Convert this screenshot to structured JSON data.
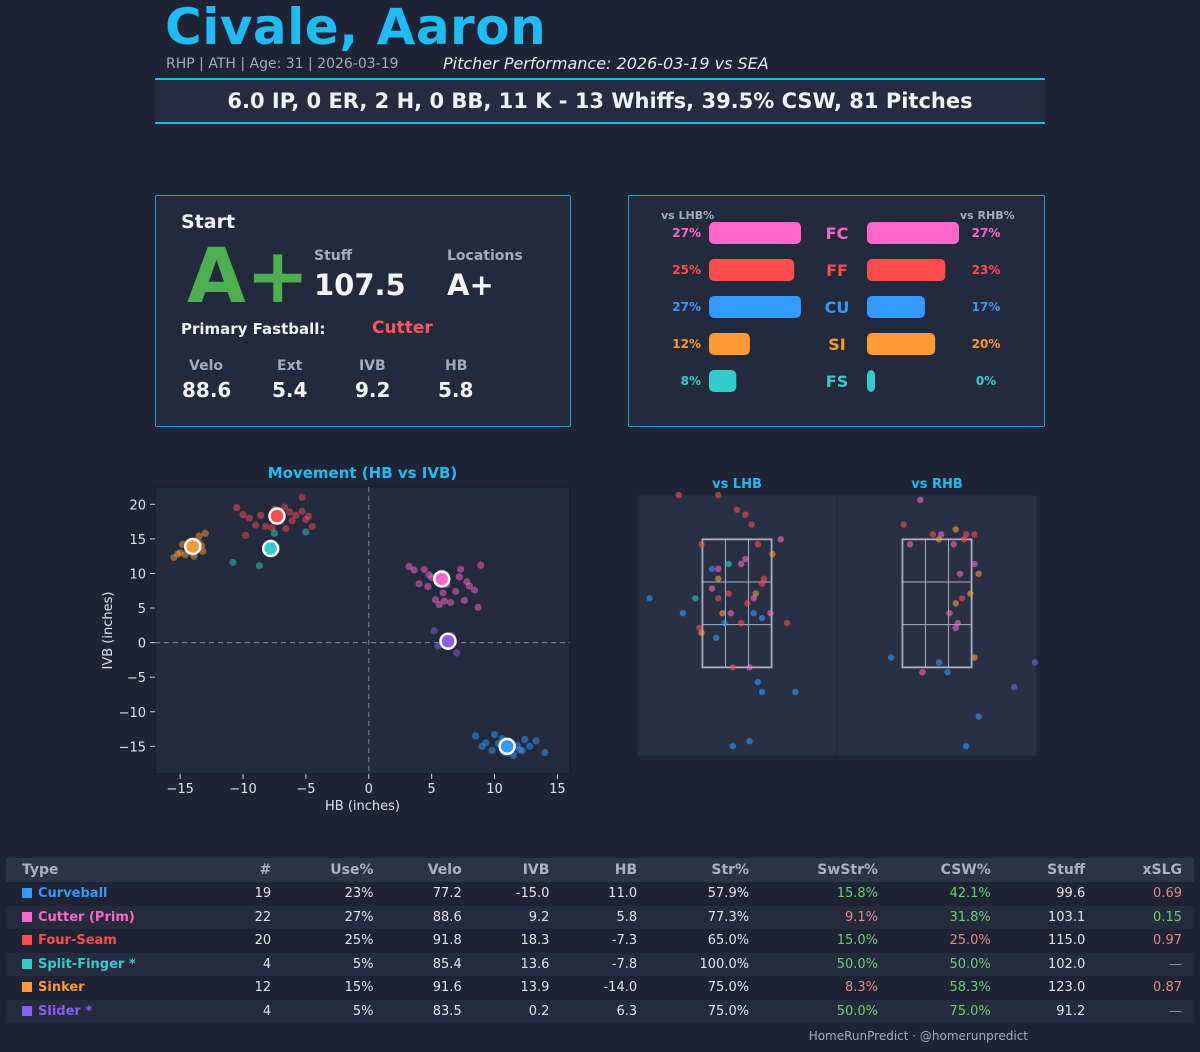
{
  "header": {
    "name": "Civale, Aaron",
    "meta": "RHP | ATH | Age: 31 | 2026-03-19",
    "performance": "Pitcher Performance: 2026-03-19 vs SEA",
    "statline": "6.0 IP, 0 ER, 2 H, 0 BB, 11 K - 13 Whiffs, 39.5% CSW, 81 Pitches"
  },
  "grade_card": {
    "title": "Start",
    "grade": "A+",
    "stuff_label": "Stuff",
    "stuff_value": "107.5",
    "locations_label": "Locations",
    "locations_value": "A+",
    "primary_label": "Primary Fastball:",
    "primary_value": "Cutter",
    "stats": [
      {
        "label": "Velo",
        "value": "88.6"
      },
      {
        "label": "Ext",
        "value": "5.4"
      },
      {
        "label": "IVB",
        "value": "9.2"
      },
      {
        "label": "HB",
        "value": "5.8"
      }
    ]
  },
  "usage_card": {
    "lhb_title": "vs LHB%",
    "rhb_title": "vs RHB%",
    "rows": [
      {
        "code": "FC",
        "color": "#ff66cc",
        "lhb": 27,
        "rhb": 27,
        "lhb_label": "27%",
        "rhb_label": "27%"
      },
      {
        "code": "FF",
        "color": "#ff4d4d",
        "lhb": 25,
        "rhb": 23,
        "lhb_label": "25%",
        "rhb_label": "23%"
      },
      {
        "code": "CU",
        "color": "#3399ff",
        "lhb": 27,
        "rhb": 17,
        "lhb_label": "27%",
        "rhb_label": "17%"
      },
      {
        "code": "SI",
        "color": "#ff9933",
        "lhb": 12,
        "rhb": 20,
        "lhb_label": "12%",
        "rhb_label": "20%"
      },
      {
        "code": "FS",
        "color": "#33cccc",
        "lhb": 8,
        "rhb": 0,
        "lhb_label": "8%",
        "rhb_label": "0%"
      }
    ]
  },
  "chart_data": [
    {
      "type": "scatter",
      "title": "Movement (HB vs IVB)",
      "xlabel": "HB (inches)",
      "ylabel": "IVB (inches)",
      "xlim": [
        -17,
        16
      ],
      "ylim": [
        -19,
        22.5
      ],
      "xticks": [
        -15,
        -10,
        -5,
        0,
        5,
        10,
        15
      ],
      "yticks": [
        20,
        15,
        10,
        5,
        0,
        -5,
        -10,
        -15
      ],
      "xtick_labels": [
        "−15",
        "−10",
        "−5",
        "0",
        "5",
        "10",
        "15"
      ],
      "ytick_labels": [
        "20",
        "15",
        "10",
        "5",
        "0",
        "−5",
        "−10",
        "−15"
      ],
      "series": [
        {
          "name": "Curveball",
          "color": "#3399ff",
          "avg": [
            11.0,
            -15.0
          ],
          "points": [
            [
              8.5,
              -13.5
            ],
            [
              9.3,
              -14.5
            ],
            [
              10.0,
              -13.3
            ],
            [
              10.3,
              -14.6
            ],
            [
              10.7,
              -15.8
            ],
            [
              11.2,
              -15.3
            ],
            [
              11.8,
              -14.9
            ],
            [
              12.2,
              -15.6
            ],
            [
              12.8,
              -15.0
            ],
            [
              13.3,
              -14.2
            ],
            [
              14.0,
              -15.9
            ],
            [
              9.8,
              -15.6
            ],
            [
              10.6,
              -13.9
            ],
            [
              11.5,
              -16.3
            ],
            [
              12.4,
              -14.0
            ],
            [
              9.0,
              -15.0
            ],
            [
              11.0,
              -16.0
            ],
            [
              12.0,
              -15.5
            ],
            [
              10.9,
              -14.8
            ]
          ]
        },
        {
          "name": "Cutter (Prim)",
          "color": "#ff66cc",
          "avg": [
            5.8,
            9.2
          ],
          "points": [
            [
              3.2,
              11.0
            ],
            [
              3.6,
              10.5
            ],
            [
              4.0,
              8.5
            ],
            [
              4.4,
              10.6
            ],
            [
              4.7,
              8.1
            ],
            [
              5.0,
              9.4
            ],
            [
              5.3,
              6.2
            ],
            [
              5.6,
              5.5
            ],
            [
              5.9,
              7.2
            ],
            [
              6.2,
              8.4
            ],
            [
              6.5,
              5.8
            ],
            [
              6.9,
              7.4
            ],
            [
              7.2,
              9.5
            ],
            [
              7.6,
              6.1
            ],
            [
              8.0,
              8.2
            ],
            [
              8.4,
              7.6
            ],
            [
              8.7,
              5.1
            ],
            [
              8.9,
              11.2
            ],
            [
              7.3,
              10.6
            ],
            [
              4.8,
              9.8
            ],
            [
              6.0,
              6.0
            ],
            [
              7.8,
              8.8
            ]
          ]
        },
        {
          "name": "Four-Seam",
          "color": "#ff4d4d",
          "avg": [
            -7.3,
            18.3
          ],
          "points": [
            [
              -10.5,
              19.5
            ],
            [
              -10.0,
              18.5
            ],
            [
              -9.8,
              15.5
            ],
            [
              -9.0,
              17.0
            ],
            [
              -8.6,
              18.4
            ],
            [
              -8.2,
              16.8
            ],
            [
              -7.5,
              19.3
            ],
            [
              -7.0,
              17.6
            ],
            [
              -6.7,
              19.6
            ],
            [
              -6.3,
              18.9
            ],
            [
              -6.1,
              17.6
            ],
            [
              -5.8,
              18.4
            ],
            [
              -5.3,
              19.0
            ],
            [
              -5.0,
              17.8
            ],
            [
              -4.8,
              18.3
            ],
            [
              -5.3,
              21.0
            ],
            [
              -6.6,
              16.5
            ],
            [
              -7.7,
              16.6
            ],
            [
              -4.5,
              16.8
            ],
            [
              -9.5,
              18.0
            ]
          ]
        },
        {
          "name": "Split-Finger",
          "color": "#33cccc",
          "avg": [
            -7.8,
            13.6
          ],
          "points": [
            [
              -10.8,
              11.6
            ],
            [
              -8.7,
              11.1
            ],
            [
              -7.5,
              15.8
            ],
            [
              -5.0,
              16.0
            ]
          ]
        },
        {
          "name": "Sinker",
          "color": "#ff9933",
          "avg": [
            -14.0,
            13.9
          ],
          "points": [
            [
              -15.5,
              12.3
            ],
            [
              -15.0,
              13.0
            ],
            [
              -14.6,
              12.7
            ],
            [
              -14.3,
              13.5
            ],
            [
              -13.9,
              12.5
            ],
            [
              -13.5,
              14.4
            ],
            [
              -13.2,
              13.2
            ],
            [
              -13.0,
              15.8
            ],
            [
              -14.8,
              14.2
            ],
            [
              -13.5,
              15.4
            ],
            [
              -15.2,
              12.8
            ],
            [
              -13.3,
              14.0
            ]
          ]
        },
        {
          "name": "Slider",
          "color": "#8b5cf6",
          "avg": [
            6.3,
            0.2
          ],
          "points": [
            [
              5.2,
              1.7
            ],
            [
              5.5,
              -0.5
            ],
            [
              6.6,
              1.0
            ],
            [
              7.0,
              -1.5
            ]
          ]
        }
      ]
    },
    {
      "type": "scatter",
      "title": "vs LHB",
      "xlim": [
        -2.4,
        2.4
      ],
      "ylim": [
        -0.3,
        5.0
      ],
      "zone_x": [
        -0.83,
        0.83
      ],
      "zone_y": [
        1.5,
        4.1
      ],
      "series": [
        {
          "name": "Curveball",
          "color": "#3399ff",
          "points": [
            [
              -2.1,
              2.9
            ],
            [
              -1.3,
              2.6
            ],
            [
              -0.3,
              2.4
            ],
            [
              0.4,
              2.6
            ],
            [
              -0.6,
              3.5
            ],
            [
              -0.5,
              2.1
            ],
            [
              0.5,
              1.2
            ],
            [
              0.6,
              1.0
            ],
            [
              -0.1,
              -0.1
            ],
            [
              0.3,
              0.0
            ],
            [
              1.4,
              1.0
            ],
            [
              0.6,
              2.5
            ]
          ]
        },
        {
          "name": "Cutter (Prim)",
          "color": "#ff66cc",
          "points": [
            [
              -0.45,
              3.5
            ],
            [
              0.2,
              3.7
            ],
            [
              -0.6,
              3.1
            ],
            [
              0.8,
              2.6
            ],
            [
              0.4,
              2.9
            ],
            [
              0.3,
              1.5
            ],
            [
              -0.15,
              2.6
            ],
            [
              0.1,
              3.6
            ],
            [
              1.05,
              4.1
            ]
          ]
        },
        {
          "name": "Four-Seam",
          "color": "#ff4d4d",
          "points": [
            [
              -1.4,
              5.0
            ],
            [
              -0.45,
              5.0
            ],
            [
              0.0,
              4.7
            ],
            [
              0.2,
              4.6
            ],
            [
              0.35,
              4.4
            ],
            [
              -0.85,
              4.0
            ],
            [
              0.5,
              4.0
            ],
            [
              0.65,
              3.3
            ],
            [
              -0.9,
              2.3
            ],
            [
              -0.45,
              2.9
            ],
            [
              0.6,
              3.2
            ],
            [
              -0.2,
              3.0
            ],
            [
              0.1,
              2.4
            ],
            [
              -0.1,
              1.5
            ],
            [
              1.2,
              2.4
            ],
            [
              0.25,
              2.8
            ]
          ]
        },
        {
          "name": "Split-Finger",
          "color": "#33cccc",
          "points": [
            [
              -1.0,
              2.9
            ],
            [
              -0.2,
              3.6
            ]
          ]
        },
        {
          "name": "Sinker",
          "color": "#ff9933",
          "points": [
            [
              -0.45,
              3.3
            ],
            [
              -0.35,
              2.6
            ],
            [
              0.45,
              3.0
            ],
            [
              0.85,
              3.8
            ],
            [
              -0.85,
              2.2
            ]
          ]
        }
      ]
    },
    {
      "type": "scatter",
      "title": "vs RHB",
      "xlim": [
        -2.4,
        2.4
      ],
      "ylim": [
        -0.3,
        5.0
      ],
      "zone_x": [
        -0.83,
        0.83
      ],
      "zone_y": [
        1.5,
        4.1
      ],
      "series": [
        {
          "name": "Curveball",
          "color": "#3399ff",
          "points": [
            [
              -1.1,
              1.7
            ],
            [
              0.05,
              1.6
            ],
            [
              1.0,
              0.5
            ],
            [
              0.7,
              -0.1
            ],
            [
              0.25,
              1.4
            ]
          ]
        },
        {
          "name": "Cutter (Prim)",
          "color": "#ff66cc",
          "points": [
            [
              -0.4,
              4.9
            ],
            [
              0.4,
              4.0
            ],
            [
              0.55,
              3.4
            ],
            [
              0.5,
              2.4
            ],
            [
              0.45,
              2.3
            ],
            [
              -0.65,
              4.0
            ],
            [
              0.1,
              4.2
            ],
            [
              -0.35,
              1.4
            ],
            [
              0.9,
              3.6
            ],
            [
              0.3,
              2.6
            ]
          ]
        },
        {
          "name": "Four-Seam",
          "color": "#ff4d4d",
          "points": [
            [
              -0.8,
              4.4
            ],
            [
              -0.1,
              4.2
            ],
            [
              0.7,
              4.2
            ],
            [
              0.65,
              4.1
            ],
            [
              0.9,
              4.2
            ],
            [
              0.6,
              2.9
            ]
          ]
        },
        {
          "name": "Sinker",
          "color": "#ff9933",
          "points": [
            [
              0.45,
              4.3
            ],
            [
              0.05,
              4.1
            ],
            [
              1.0,
              3.4
            ],
            [
              0.8,
              3.0
            ],
            [
              0.45,
              2.8
            ],
            [
              0.9,
              1.7
            ]
          ]
        },
        {
          "name": "Slider",
          "color": "#8b5cf6",
          "points": [
            [
              2.35,
              1.6
            ],
            [
              1.85,
              1.1
            ]
          ]
        }
      ]
    }
  ],
  "table": {
    "headers": [
      "Type",
      "#",
      "Use%",
      "Velo",
      "IVB",
      "HB",
      "Str%",
      "SwStr%",
      "CSW%",
      "Stuff",
      "xSLG"
    ],
    "rows": [
      {
        "name": "Curveball",
        "color": "#3399ff",
        "cells": [
          "19",
          "23%",
          "77.2",
          "-15.0",
          "11.0",
          "57.9%",
          "15.8%",
          "42.1%",
          "99.6",
          "0.69"
        ],
        "tones": [
          "",
          "",
          "",
          "",
          "",
          "",
          "good",
          "good",
          "",
          "bad"
        ]
      },
      {
        "name": "Cutter (Prim)",
        "color": "#ff66cc",
        "cells": [
          "22",
          "27%",
          "88.6",
          "9.2",
          "5.8",
          "77.3%",
          "9.1%",
          "31.8%",
          "103.1",
          "0.15"
        ],
        "tones": [
          "",
          "",
          "",
          "",
          "",
          "",
          "bad",
          "good",
          "",
          "good"
        ]
      },
      {
        "name": "Four-Seam",
        "color": "#ff4d4d",
        "cells": [
          "20",
          "25%",
          "91.8",
          "18.3",
          "-7.3",
          "65.0%",
          "15.0%",
          "25.0%",
          "115.0",
          "0.97"
        ],
        "tones": [
          "",
          "",
          "",
          "",
          "",
          "",
          "good",
          "bad",
          "",
          "bad"
        ]
      },
      {
        "name": "Split-Finger *",
        "color": "#33cccc",
        "cells": [
          "4",
          "5%",
          "85.4",
          "13.6",
          "-7.8",
          "100.0%",
          "50.0%",
          "50.0%",
          "102.0",
          "—"
        ],
        "tones": [
          "",
          "",
          "",
          "",
          "",
          "",
          "good",
          "good",
          "",
          "dash"
        ]
      },
      {
        "name": "Sinker",
        "color": "#ff9933",
        "cells": [
          "12",
          "15%",
          "91.6",
          "13.9",
          "-14.0",
          "75.0%",
          "8.3%",
          "58.3%",
          "123.0",
          "0.87"
        ],
        "tones": [
          "",
          "",
          "",
          "",
          "",
          "",
          "bad",
          "good",
          "",
          "bad"
        ]
      },
      {
        "name": "Slider *",
        "color": "#8b5cf6",
        "cells": [
          "4",
          "5%",
          "83.5",
          "0.2",
          "6.3",
          "75.0%",
          "50.0%",
          "75.0%",
          "91.2",
          "—"
        ],
        "tones": [
          "",
          "",
          "",
          "",
          "",
          "",
          "good",
          "good",
          "",
          "dash"
        ]
      }
    ]
  },
  "footer": "HomeRunPredict · @homerunpredict",
  "colors": {
    "accent": "#1ebcf5",
    "grade": "#4caf50",
    "primary": "#ff5a5a",
    "good": "#6fcf6f",
    "bad": "#e08a8a"
  }
}
